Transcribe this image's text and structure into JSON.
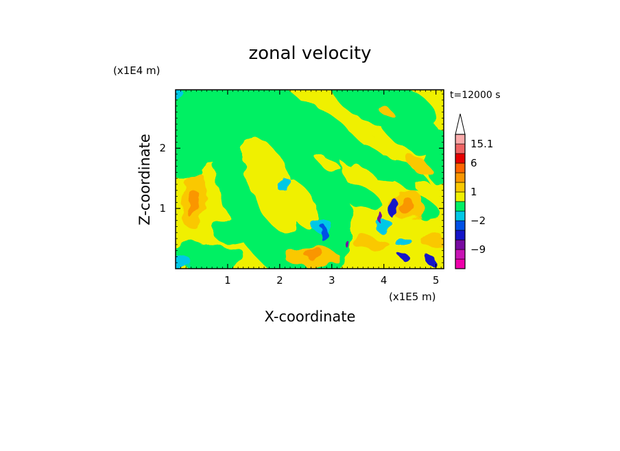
{
  "chart_data": {
    "type": "heatmap",
    "title": "zonal velocity",
    "xlabel": "X-coordinate",
    "ylabel": "Z-coordinate",
    "x_unit": "(x1E5 m)",
    "y_unit": "(x1E4 m)",
    "time_label": "t=12000 s",
    "xlim": [
      0,
      5.15
    ],
    "ylim": [
      0,
      2.97
    ],
    "x_ticks": [
      1,
      2,
      3,
      4,
      5
    ],
    "y_ticks": [
      1,
      2
    ],
    "x_tick_labels": [
      "1",
      "2",
      "3",
      "4",
      "5"
    ],
    "y_tick_labels": [
      "1",
      "2"
    ],
    "grid": false,
    "colorbar": {
      "levels": [
        {
          "color": "#ee00aa"
        },
        {
          "color": "#c814b4"
        },
        {
          "color": "#780aa0"
        },
        {
          "color": "#1414c8"
        },
        {
          "color": "#0050e6"
        },
        {
          "color": "#00c8e6"
        },
        {
          "color": "#00f064"
        },
        {
          "color": "#f0f000"
        },
        {
          "color": "#fac800"
        },
        {
          "color": "#fa9600"
        },
        {
          "color": "#ff6400"
        },
        {
          "color": "#e60000"
        },
        {
          "color": "#f06464"
        },
        {
          "color": "#faaaaa"
        }
      ],
      "labels": [
        {
          "text": "15.1",
          "after_level": 13
        },
        {
          "text": "6",
          "after_level": 11
        },
        {
          "text": "1",
          "after_level": 8
        },
        {
          "text": "−2",
          "after_level": 5
        },
        {
          "text": "−9",
          "after_level": 2
        }
      ],
      "extend": "max"
    }
  }
}
